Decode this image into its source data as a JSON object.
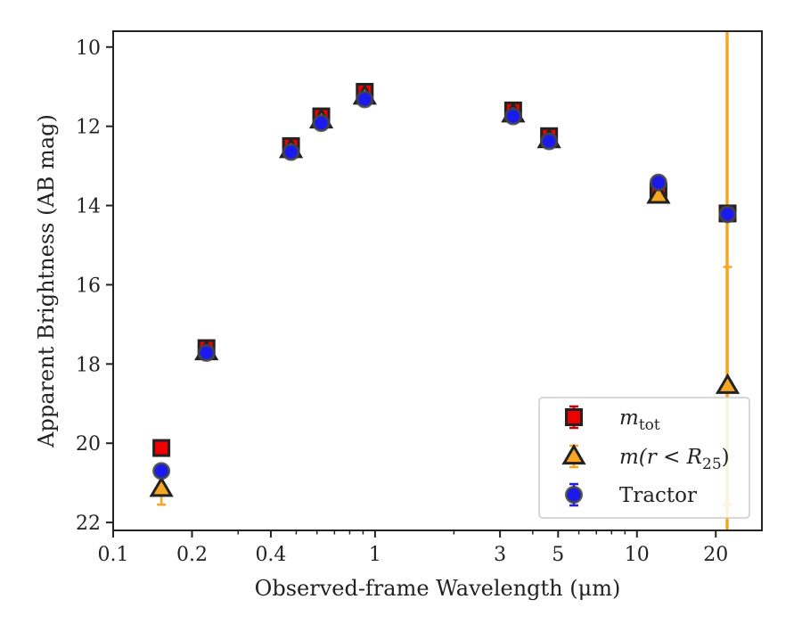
{
  "chart_data": {
    "type": "scatter",
    "title": "",
    "xlabel": "Observed-frame Wavelength (μm)",
    "ylabel": "Apparent Brightness (AB mag)",
    "xscale": "log",
    "xlim": [
      0.1,
      30
    ],
    "ylim": [
      22.2,
      9.6
    ],
    "y_inverted": true,
    "x_ticks": [
      {
        "value": 0.1,
        "label": "0.1"
      },
      {
        "value": 0.2,
        "label": "0.2"
      },
      {
        "value": 0.4,
        "label": "0.4"
      },
      {
        "value": 1,
        "label": "1"
      },
      {
        "value": 3,
        "label": "3"
      },
      {
        "value": 5,
        "label": "5"
      },
      {
        "value": 10,
        "label": "10"
      },
      {
        "value": 20,
        "label": "20"
      }
    ],
    "y_ticks": [
      {
        "value": 10,
        "label": "10"
      },
      {
        "value": 12,
        "label": "12"
      },
      {
        "value": 14,
        "label": "14"
      },
      {
        "value": 16,
        "label": "16"
      },
      {
        "value": 18,
        "label": "18"
      },
      {
        "value": 20,
        "label": "20"
      },
      {
        "value": 22,
        "label": "22"
      }
    ],
    "grid": false,
    "legend_position": "lower-right",
    "vertical_line": {
      "x": 22.1,
      "color": "#f5a623"
    },
    "series": [
      {
        "name_main": "m",
        "name_sub": "tot",
        "name_suffix": "",
        "marker": "square",
        "fill": "#ee0000",
        "edge": "#222222",
        "errcolor": "#cc0000",
        "points": [
          {
            "x": 0.1528,
            "y": 20.12,
            "err": 0.05
          },
          {
            "x": 0.2271,
            "y": 17.6,
            "err": 0.05
          },
          {
            "x": 0.4776,
            "y": 12.5,
            "err": 0.1
          },
          {
            "x": 0.6231,
            "y": 11.75,
            "err": 0.1
          },
          {
            "x": 0.9132,
            "y": 11.13,
            "err": 0.1
          },
          {
            "x": 3.368,
            "y": 11.6,
            "err": 0.1
          },
          {
            "x": 4.618,
            "y": 12.25,
            "err": 0.1
          },
          {
            "x": 12.08,
            "y": 13.65,
            "err": 0.15
          },
          {
            "x": 22.19,
            "y": 14.2,
            "err": 0.05
          }
        ]
      },
      {
        "name_main": "m(r < R",
        "name_sub": "25",
        "name_suffix": ")",
        "marker": "triangle",
        "fill": "#f5a623",
        "edge": "#222222",
        "errcolor": "#f5a623",
        "points": [
          {
            "x": 0.1528,
            "y": 21.15,
            "err": 0.4
          },
          {
            "x": 0.2271,
            "y": 17.7,
            "err": 0.05
          },
          {
            "x": 0.4776,
            "y": 12.6,
            "err": 0.05
          },
          {
            "x": 0.6231,
            "y": 11.85,
            "err": 0.05
          },
          {
            "x": 0.9132,
            "y": 11.25,
            "err": 0.05
          },
          {
            "x": 3.368,
            "y": 11.7,
            "err": 0.05
          },
          {
            "x": 4.618,
            "y": 12.35,
            "err": 0.05
          },
          {
            "x": 12.08,
            "y": 13.75,
            "err": 0.1
          },
          {
            "x": 22.19,
            "y": 18.55,
            "err": 3.0
          }
        ]
      },
      {
        "name_main": "Tractor",
        "name_sub": "",
        "name_suffix": "",
        "marker": "circle",
        "fill": "#1a1aee",
        "edge": "#444444",
        "errcolor": "#2222dd",
        "points": [
          {
            "x": 0.1528,
            "y": 20.7,
            "err": 0.05
          },
          {
            "x": 0.2271,
            "y": 17.72,
            "err": 0.05
          },
          {
            "x": 0.4776,
            "y": 12.65,
            "err": 0.05
          },
          {
            "x": 0.6231,
            "y": 11.92,
            "err": 0.05
          },
          {
            "x": 0.9132,
            "y": 11.32,
            "err": 0.05
          },
          {
            "x": 3.368,
            "y": 11.75,
            "err": 0.05
          },
          {
            "x": 4.618,
            "y": 12.38,
            "err": 0.05
          },
          {
            "x": 12.08,
            "y": 13.42,
            "err": 0.1
          },
          {
            "x": 22.19,
            "y": 14.22,
            "err": 0.05
          }
        ]
      }
    ]
  }
}
